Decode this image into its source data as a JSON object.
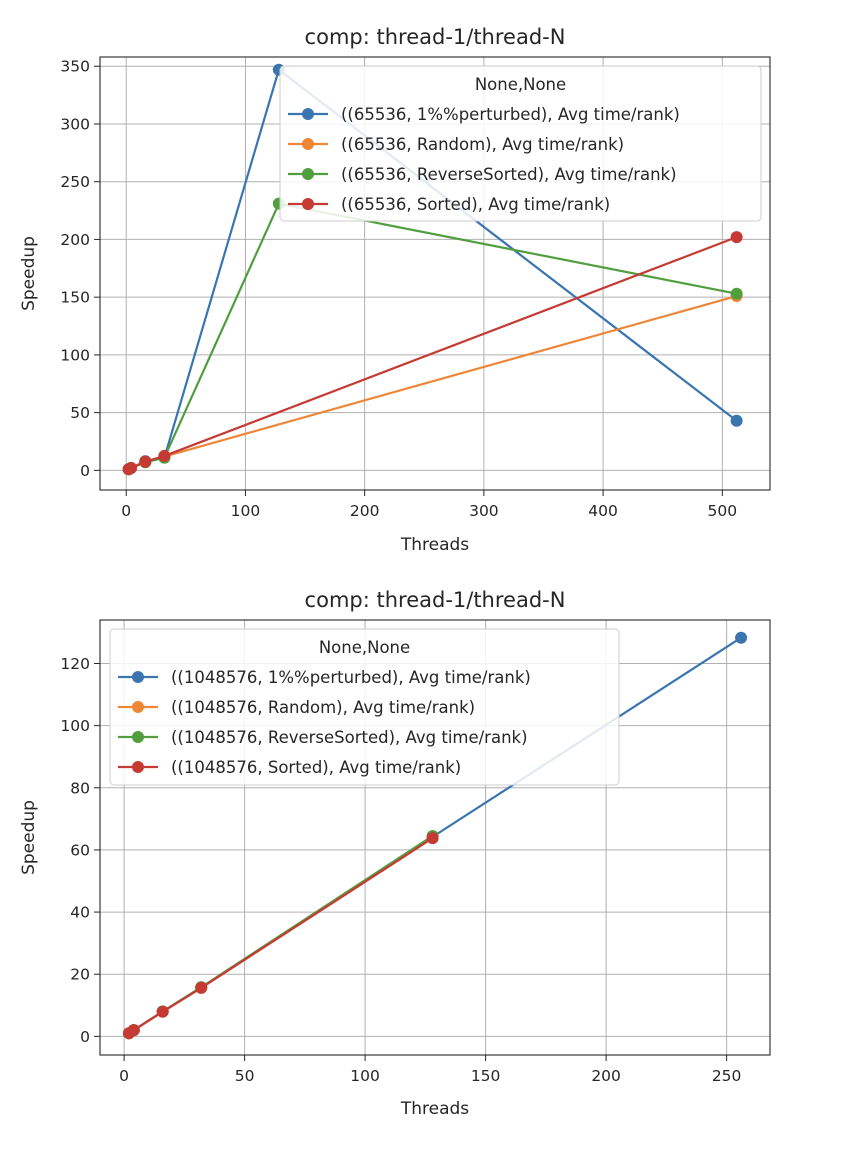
{
  "chart_data": [
    {
      "type": "line",
      "title": "comp: thread-1/thread-N",
      "xlabel": "Threads",
      "ylabel": "Speedup",
      "xlim": [
        -22,
        540
      ],
      "ylim": [
        -17,
        358
      ],
      "xticks": [
        0,
        100,
        200,
        300,
        400,
        500
      ],
      "yticks": [
        0,
        50,
        100,
        150,
        200,
        250,
        300,
        350
      ],
      "grid": true,
      "legend": {
        "title": "None,None",
        "placement": "upper-right"
      },
      "series": [
        {
          "name": "((65536, 1%%perturbed), Avg time/rank)",
          "color": "#3a75b0",
          "points": [
            [
              2,
              1.0
            ],
            [
              4,
              2.0
            ],
            [
              16,
              8.0
            ],
            [
              32,
              11.0
            ],
            [
              128,
              347
            ],
            [
              512,
              43
            ]
          ]
        },
        {
          "name": "((65536, Random), Avg time/rank)",
          "color": "#ef8636",
          "points": [
            [
              2,
              1.0
            ],
            [
              4,
              2.2
            ],
            [
              16,
              7.5
            ],
            [
              32,
              12.0
            ],
            [
              512,
              151
            ]
          ]
        },
        {
          "name": "((65536, ReverseSorted), Avg time/rank)",
          "color": "#519e3e",
          "points": [
            [
              2,
              0.9
            ],
            [
              4,
              2.0
            ],
            [
              16,
              7.0
            ],
            [
              32,
              11.0
            ],
            [
              128,
              231
            ],
            [
              512,
              153
            ]
          ]
        },
        {
          "name": "((65536, Sorted), Avg time/rank)",
          "color": "#c53a32",
          "points": [
            [
              2,
              1.0
            ],
            [
              4,
              2.0
            ],
            [
              16,
              7.5
            ],
            [
              32,
              12.5
            ],
            [
              512,
              202
            ]
          ]
        }
      ]
    },
    {
      "type": "line",
      "title": "comp: thread-1/thread-N",
      "xlabel": "Threads",
      "ylabel": "Speedup",
      "xlim": [
        -10,
        268
      ],
      "ylim": [
        -6,
        134
      ],
      "xticks": [
        0,
        50,
        100,
        150,
        200,
        250
      ],
      "yticks": [
        0,
        20,
        40,
        60,
        80,
        100,
        120
      ],
      "grid": true,
      "legend": {
        "title": "None,None",
        "placement": "upper-left"
      },
      "series": [
        {
          "name": "((1048576, 1%%perturbed), Avg time/rank)",
          "color": "#3a75b0",
          "points": [
            [
              2,
              1.0
            ],
            [
              4,
              2.0
            ],
            [
              16,
              8.0
            ],
            [
              32,
              15.8
            ],
            [
              128,
              64.2
            ],
            [
              256,
              128.3
            ]
          ]
        },
        {
          "name": "((1048576, Random), Avg time/rank)",
          "color": "#ef8636",
          "points": [
            [
              2,
              1.0
            ],
            [
              4,
              2.0
            ],
            [
              16,
              8.0
            ],
            [
              32,
              15.7
            ],
            [
              128,
              64.0
            ]
          ]
        },
        {
          "name": "((1048576, ReverseSorted), Avg time/rank)",
          "color": "#519e3e",
          "points": [
            [
              2,
              1.0
            ],
            [
              4,
              2.0
            ],
            [
              16,
              8.0
            ],
            [
              32,
              15.8
            ],
            [
              128,
              64.5
            ]
          ]
        },
        {
          "name": "((1048576, Sorted), Avg time/rank)",
          "color": "#c53a32",
          "points": [
            [
              2,
              1.0
            ],
            [
              4,
              2.0
            ],
            [
              16,
              7.9
            ],
            [
              32,
              15.6
            ],
            [
              128,
              63.8
            ]
          ]
        }
      ]
    }
  ]
}
